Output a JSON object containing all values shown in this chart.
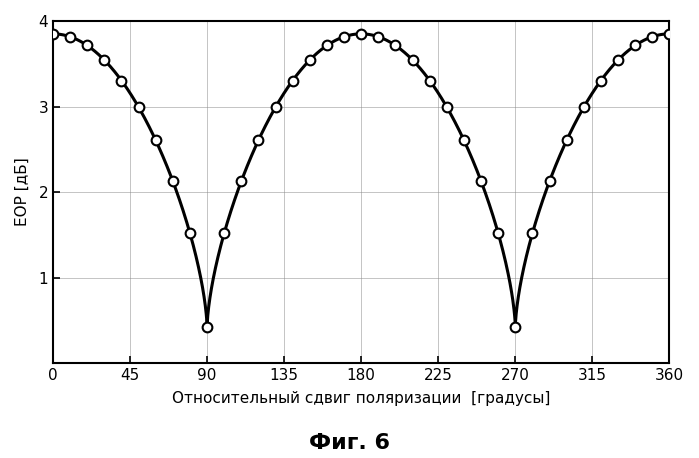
{
  "title": "Фиг. 6",
  "xlabel": "Относительный сдвиг поляризации  [градусы]",
  "ylabel": "ЕОР [дБ]",
  "xlim": [
    0,
    360
  ],
  "ylim": [
    0,
    4
  ],
  "xticks": [
    0,
    45,
    90,
    135,
    180,
    225,
    270,
    315,
    360
  ],
  "yticks": [
    0,
    1,
    2,
    3,
    4
  ],
  "curve_color": "#000000",
  "marker_color": "#ffffff",
  "marker_edge_color": "#000000",
  "background_color": "#ffffff",
  "grid_color": "#888888",
  "peak_value": 3.85,
  "trough_value": 0.42,
  "marker_angles": [
    0,
    10,
    20,
    30,
    40,
    50,
    60,
    70,
    75,
    80,
    85,
    90,
    95,
    100,
    105,
    115,
    125,
    135,
    155,
    165,
    170,
    175,
    180,
    185,
    190,
    195,
    205,
    215,
    225,
    235,
    245,
    255,
    260,
    265,
    270,
    275,
    280,
    285,
    295,
    305,
    315,
    325,
    335,
    345,
    355,
    360
  ]
}
